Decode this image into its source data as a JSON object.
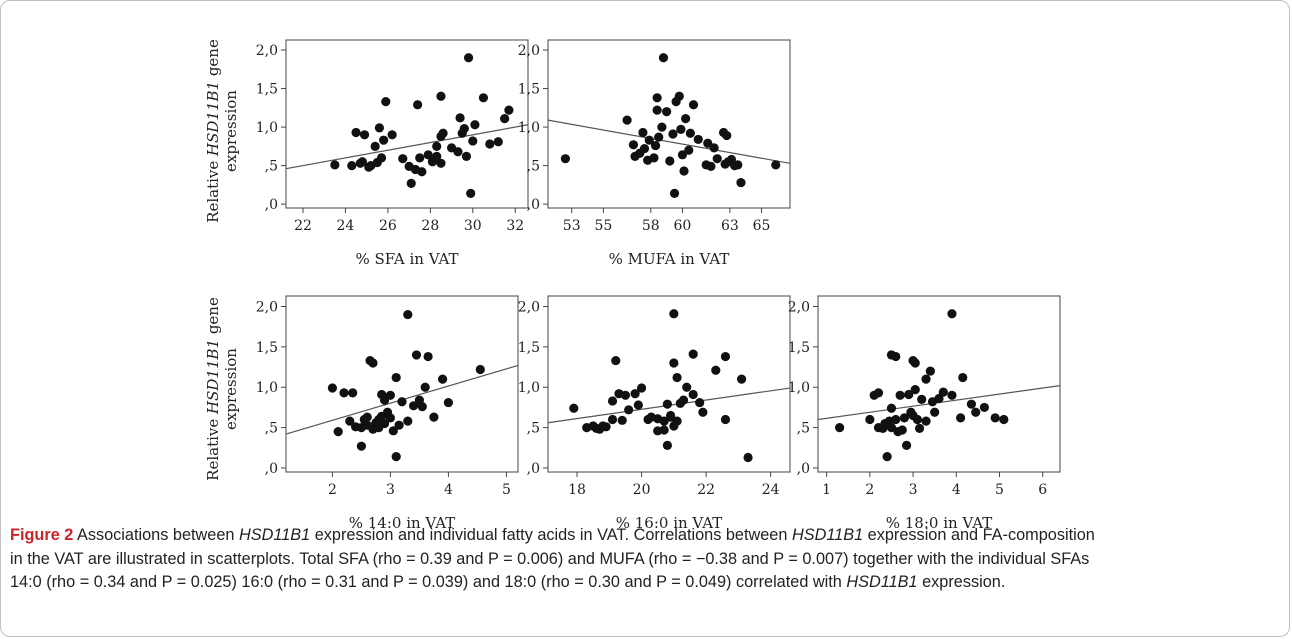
{
  "figure": {
    "ylabel_parts": [
      "Relative ",
      "HSD11B1",
      " gene"
    ],
    "ylabel_line2": "expression"
  },
  "chart_data": [
    {
      "type": "scatter",
      "xlabel": "% SFA in VAT",
      "xticks": [
        22,
        24,
        26,
        28,
        30,
        32
      ],
      "xlim": [
        21.2,
        32.6
      ],
      "ylim": [
        -0.05,
        2.13
      ],
      "yticks": [
        0,
        0.5,
        1.0,
        1.5,
        2.0
      ],
      "ytick_labels": [
        ",0",
        ",5",
        "1,0",
        "1,5",
        "2,0"
      ],
      "grid": false,
      "points": [
        [
          23.5,
          0.51
        ],
        [
          24.3,
          0.5
        ],
        [
          24.5,
          0.93
        ],
        [
          24.7,
          0.53
        ],
        [
          24.8,
          0.55
        ],
        [
          24.9,
          0.9
        ],
        [
          25.1,
          0.48
        ],
        [
          25.2,
          0.5
        ],
        [
          25.4,
          0.75
        ],
        [
          25.5,
          0.54
        ],
        [
          25.6,
          0.99
        ],
        [
          25.7,
          0.6
        ],
        [
          25.8,
          0.83
        ],
        [
          25.9,
          1.33
        ],
        [
          26.2,
          0.9
        ],
        [
          26.7,
          0.59
        ],
        [
          27.0,
          0.49
        ],
        [
          27.1,
          0.27
        ],
        [
          27.3,
          0.45
        ],
        [
          27.4,
          1.29
        ],
        [
          27.5,
          0.6
        ],
        [
          27.6,
          0.42
        ],
        [
          27.9,
          0.64
        ],
        [
          28.1,
          0.55
        ],
        [
          28.3,
          0.62
        ],
        [
          28.3,
          0.75
        ],
        [
          28.5,
          0.53
        ],
        [
          28.5,
          0.88
        ],
        [
          28.6,
          0.92
        ],
        [
          28.5,
          1.4
        ],
        [
          29.0,
          0.73
        ],
        [
          29.3,
          0.68
        ],
        [
          29.4,
          1.12
        ],
        [
          29.5,
          0.92
        ],
        [
          29.6,
          0.98
        ],
        [
          29.7,
          0.62
        ],
        [
          29.8,
          1.9
        ],
        [
          29.9,
          0.14
        ],
        [
          30.0,
          0.82
        ],
        [
          30.1,
          1.03
        ],
        [
          30.5,
          1.38
        ],
        [
          30.8,
          0.78
        ],
        [
          31.2,
          0.81
        ],
        [
          31.5,
          1.11
        ],
        [
          31.7,
          1.22
        ]
      ],
      "fit_line": [
        [
          21.2,
          0.46
        ],
        [
          32.6,
          1.03
        ]
      ]
    },
    {
      "type": "scatter",
      "xlabel": "% MUFA in VAT",
      "xticks": [
        53,
        55,
        58,
        60,
        63,
        65
      ],
      "xlim": [
        51.5,
        66.8
      ],
      "ylim": [
        -0.05,
        2.13
      ],
      "yticks": [
        0,
        0.5,
        1.0,
        1.5,
        2.0
      ],
      "ytick_labels": [
        ",0",
        ",5",
        "1,0",
        "1,5",
        "2,0"
      ],
      "grid": false,
      "points": [
        [
          52.6,
          0.59
        ],
        [
          56.5,
          1.09
        ],
        [
          56.9,
          0.77
        ],
        [
          57.0,
          0.62
        ],
        [
          57.3,
          0.66
        ],
        [
          57.5,
          0.93
        ],
        [
          57.6,
          0.72
        ],
        [
          57.8,
          0.57
        ],
        [
          57.9,
          0.83
        ],
        [
          58.2,
          0.6
        ],
        [
          58.3,
          0.76
        ],
        [
          58.4,
          1.22
        ],
        [
          58.4,
          1.38
        ],
        [
          58.5,
          0.87
        ],
        [
          58.7,
          1.0
        ],
        [
          58.8,
          1.9
        ],
        [
          59.0,
          1.2
        ],
        [
          59.2,
          0.56
        ],
        [
          59.4,
          0.91
        ],
        [
          59.5,
          0.14
        ],
        [
          59.6,
          1.33
        ],
        [
          59.8,
          1.4
        ],
        [
          59.9,
          0.97
        ],
        [
          60.0,
          0.64
        ],
        [
          60.1,
          0.43
        ],
        [
          60.2,
          1.11
        ],
        [
          60.4,
          0.7
        ],
        [
          60.5,
          0.92
        ],
        [
          60.7,
          1.29
        ],
        [
          61.0,
          0.84
        ],
        [
          61.5,
          0.51
        ],
        [
          61.6,
          0.79
        ],
        [
          61.8,
          0.49
        ],
        [
          62.0,
          0.73
        ],
        [
          62.2,
          0.59
        ],
        [
          62.6,
          0.93
        ],
        [
          62.7,
          0.52
        ],
        [
          62.8,
          0.89
        ],
        [
          62.9,
          0.55
        ],
        [
          63.1,
          0.58
        ],
        [
          63.3,
          0.5
        ],
        [
          63.5,
          0.51
        ],
        [
          63.7,
          0.28
        ],
        [
          65.9,
          0.51
        ]
      ],
      "fit_line": [
        [
          51.5,
          1.09
        ],
        [
          66.8,
          0.53
        ]
      ]
    },
    {
      "type": "scatter",
      "xlabel": "% 14:0 in VAT",
      "xticks": [
        2,
        3,
        4,
        5
      ],
      "xlim": [
        1.2,
        5.2
      ],
      "ylim": [
        -0.05,
        2.13
      ],
      "yticks": [
        0,
        0.5,
        1.0,
        1.5,
        2.0
      ],
      "ytick_labels": [
        ",0",
        ",5",
        "1,0",
        "1,5",
        "2,0"
      ],
      "grid": false,
      "points": [
        [
          2.0,
          0.99
        ],
        [
          2.1,
          0.45
        ],
        [
          2.2,
          0.93
        ],
        [
          2.3,
          0.58
        ],
        [
          2.35,
          0.93
        ],
        [
          2.4,
          0.51
        ],
        [
          2.5,
          0.27
        ],
        [
          2.5,
          0.5
        ],
        [
          2.55,
          0.6
        ],
        [
          2.6,
          0.53
        ],
        [
          2.6,
          0.63
        ],
        [
          2.65,
          1.33
        ],
        [
          2.7,
          1.3
        ],
        [
          2.7,
          0.48
        ],
        [
          2.75,
          0.56
        ],
        [
          2.8,
          0.6
        ],
        [
          2.8,
          0.5
        ],
        [
          2.85,
          0.91
        ],
        [
          2.85,
          0.64
        ],
        [
          2.9,
          0.55
        ],
        [
          2.9,
          0.84
        ],
        [
          2.95,
          0.69
        ],
        [
          3.0,
          0.62
        ],
        [
          3.0,
          0.9
        ],
        [
          3.05,
          0.46
        ],
        [
          3.1,
          1.12
        ],
        [
          3.1,
          0.14
        ],
        [
          3.15,
          0.53
        ],
        [
          3.2,
          0.82
        ],
        [
          3.3,
          1.9
        ],
        [
          3.4,
          0.77
        ],
        [
          3.45,
          1.4
        ],
        [
          3.5,
          0.84
        ],
        [
          3.55,
          0.76
        ],
        [
          3.6,
          1.0
        ],
        [
          3.65,
          1.38
        ],
        [
          3.75,
          0.63
        ],
        [
          3.9,
          1.1
        ],
        [
          4.0,
          0.81
        ],
        [
          4.55,
          1.22
        ],
        [
          3.3,
          0.58
        ]
      ],
      "fit_line": [
        [
          1.2,
          0.42
        ],
        [
          5.2,
          1.27
        ]
      ]
    },
    {
      "type": "scatter",
      "xlabel": "% 16:0 in VAT",
      "xticks": [
        18,
        20,
        22,
        24
      ],
      "xlim": [
        17.1,
        24.6
      ],
      "ylim": [
        -0.05,
        2.13
      ],
      "yticks": [
        0,
        0.5,
        1.0,
        1.5,
        2.0
      ],
      "ytick_labels": [
        ",0",
        ",5",
        "1,0",
        "1,5",
        "2,0"
      ],
      "grid": false,
      "points": [
        [
          17.9,
          0.74
        ],
        [
          18.3,
          0.5
        ],
        [
          18.5,
          0.52
        ],
        [
          18.6,
          0.49
        ],
        [
          18.7,
          0.48
        ],
        [
          18.8,
          0.52
        ],
        [
          18.9,
          0.51
        ],
        [
          19.1,
          0.6
        ],
        [
          19.1,
          0.83
        ],
        [
          19.2,
          1.33
        ],
        [
          19.3,
          0.92
        ],
        [
          19.4,
          0.59
        ],
        [
          19.5,
          0.9
        ],
        [
          19.6,
          0.72
        ],
        [
          19.8,
          0.92
        ],
        [
          19.9,
          0.78
        ],
        [
          20.0,
          0.99
        ],
        [
          20.2,
          0.6
        ],
        [
          20.3,
          0.63
        ],
        [
          20.5,
          0.61
        ],
        [
          20.5,
          0.46
        ],
        [
          20.7,
          0.58
        ],
        [
          20.7,
          0.47
        ],
        [
          20.8,
          0.28
        ],
        [
          20.8,
          0.79
        ],
        [
          20.9,
          0.63
        ],
        [
          20.9,
          0.65
        ],
        [
          21.0,
          1.91
        ],
        [
          21.0,
          0.52
        ],
        [
          21.0,
          1.3
        ],
        [
          21.1,
          0.58
        ],
        [
          21.2,
          0.8
        ],
        [
          21.1,
          1.12
        ],
        [
          21.3,
          0.84
        ],
        [
          21.4,
          1.0
        ],
        [
          21.6,
          0.91
        ],
        [
          21.6,
          1.41
        ],
        [
          21.8,
          0.81
        ],
        [
          21.9,
          0.69
        ],
        [
          22.3,
          1.21
        ],
        [
          22.6,
          0.6
        ],
        [
          22.6,
          1.38
        ],
        [
          23.1,
          1.1
        ],
        [
          23.3,
          0.13
        ]
      ],
      "fit_line": [
        [
          17.1,
          0.56
        ],
        [
          24.6,
          0.99
        ]
      ]
    },
    {
      "type": "scatter",
      "xlabel": "% 18:0 in VAT",
      "xticks": [
        1,
        2,
        3,
        4,
        5,
        6
      ],
      "xlim": [
        0.8,
        6.4
      ],
      "ylim": [
        -0.05,
        2.13
      ],
      "yticks": [
        0,
        0.5,
        1.0,
        1.5,
        2.0
      ],
      "ytick_labels": [
        ",0",
        ",5",
        "1,0",
        "1,5",
        "2,0"
      ],
      "grid": false,
      "points": [
        [
          1.3,
          0.5
        ],
        [
          2.0,
          0.6
        ],
        [
          2.1,
          0.9
        ],
        [
          2.2,
          0.5
        ],
        [
          2.2,
          0.93
        ],
        [
          2.3,
          0.49
        ],
        [
          2.35,
          0.55
        ],
        [
          2.4,
          0.14
        ],
        [
          2.45,
          0.58
        ],
        [
          2.5,
          0.74
        ],
        [
          2.5,
          0.5
        ],
        [
          2.5,
          1.4
        ],
        [
          2.6,
          0.6
        ],
        [
          2.6,
          1.38
        ],
        [
          2.65,
          0.45
        ],
        [
          2.7,
          0.9
        ],
        [
          2.75,
          0.47
        ],
        [
          2.8,
          0.62
        ],
        [
          2.85,
          0.28
        ],
        [
          2.9,
          0.91
        ],
        [
          2.95,
          0.69
        ],
        [
          3.0,
          1.33
        ],
        [
          3.05,
          1.3
        ],
        [
          3.05,
          0.97
        ],
        [
          3.1,
          0.6
        ],
        [
          3.15,
          0.49
        ],
        [
          3.2,
          0.85
        ],
        [
          3.3,
          0.58
        ],
        [
          3.3,
          1.1
        ],
        [
          3.4,
          1.2
        ],
        [
          3.45,
          0.82
        ],
        [
          3.5,
          0.69
        ],
        [
          3.6,
          0.86
        ],
        [
          3.7,
          0.94
        ],
        [
          3.9,
          1.91
        ],
        [
          4.1,
          0.62
        ],
        [
          4.15,
          1.12
        ],
        [
          4.35,
          0.79
        ],
        [
          4.45,
          0.69
        ],
        [
          4.65,
          0.75
        ],
        [
          4.9,
          0.62
        ],
        [
          5.1,
          0.6
        ],
        [
          3.9,
          0.9
        ],
        [
          3.0,
          0.65
        ]
      ],
      "fit_line": [
        [
          0.8,
          0.6
        ],
        [
          6.4,
          1.02
        ]
      ]
    }
  ],
  "caption": {
    "label": "Figure 2",
    "t1": " Associations between ",
    "g1": "HSD11B1",
    "t2": " expression and individual fatty acids in VAT. Correlations between ",
    "g2": "HSD11B1",
    "t3": " expression and FA-composition",
    "line2": "in the VAT are illustrated in scatterplots. Total SFA (rho = 0.39 and P = 0.006) and MUFA (rho = −0.38 and P = 0.007) together with the individual SFAs",
    "line3": "14:0 (rho = 0.34 and P = 0.025) 16:0 (rho = 0.31 and P = 0.039) and 18:0 (rho = 0.30 and P = 0.049) correlated with ",
    "g3": "HSD11B1",
    "t4": " expression."
  }
}
